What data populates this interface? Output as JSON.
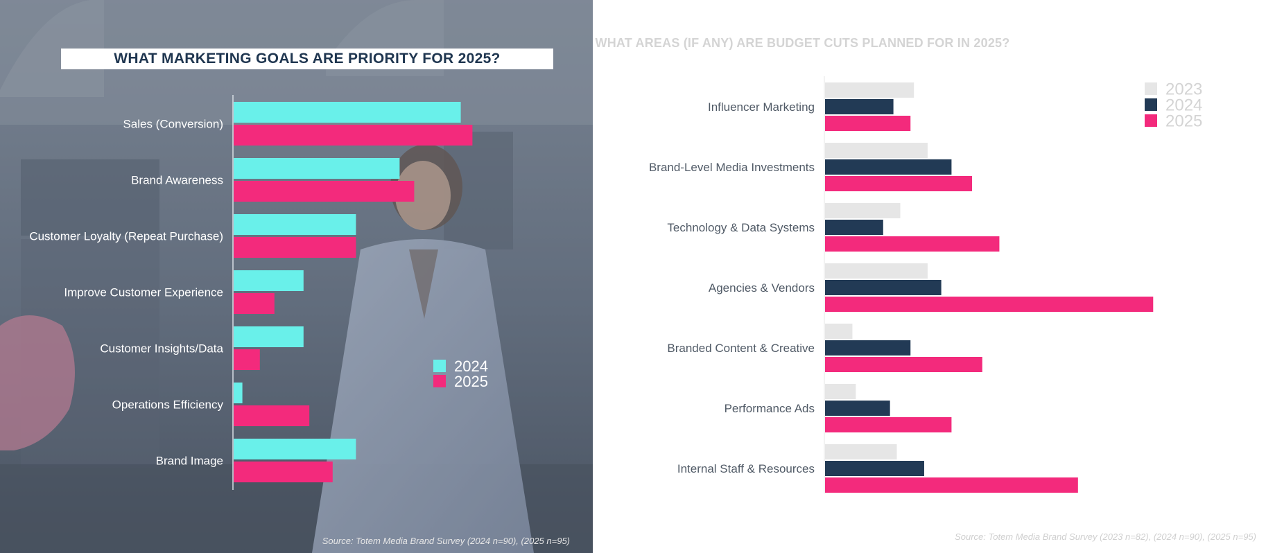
{
  "colors": {
    "cyan": "#69f0ea",
    "pink": "#f32a7c",
    "navy": "#223a55",
    "lightgray": "#e6e6e6",
    "left_label": "#ffffff",
    "right_label": "#505a66"
  },
  "left": {
    "source": "Source: Totem Media Brand Survey (2024 n=90), (2025 n=95)"
  },
  "right": {
    "source": "Source: Totem Media Brand Survey (2023 n=82), (2024 n=90), (2025 n=95)"
  },
  "chart_data": [
    {
      "type": "bar",
      "orientation": "horizontal",
      "title": "WHAT MARKETING GOALS ARE PRIORITY FOR 2025?",
      "categories": [
        "Sales (Conversion)",
        "Brand Awareness",
        "Customer Loyalty (Repeat Purchase)",
        "Improve Customer Experience",
        "Customer Insights/Data",
        "Operations Efficiency",
        "Brand Image"
      ],
      "series": [
        {
          "name": "2024",
          "color": "#69f0ea",
          "values": [
            78,
            57,
            42,
            24,
            24,
            3,
            42
          ]
        },
        {
          "name": "2025",
          "color": "#f32a7c",
          "values": [
            82,
            62,
            42,
            14,
            9,
            26,
            34
          ]
        }
      ],
      "xlim": [
        0,
        100
      ],
      "grid": false,
      "legend": "center-right"
    },
    {
      "type": "bar",
      "orientation": "horizontal",
      "title": "WHAT AREAS (IF ANY) ARE BUDGET CUTS PLANNED FOR IN 2025?",
      "categories": [
        "Influencer Marketing",
        "Brand-Level Media Investments",
        "Technology & Data Systems",
        "Agencies & Vendors",
        "Branded Content & Creative",
        "Performance Ads",
        "Internal Staff & Resources"
      ],
      "series": [
        {
          "name": "2023",
          "color": "#e6e6e6",
          "values": [
            26,
            30,
            22,
            30,
            8,
            9,
            21
          ]
        },
        {
          "name": "2024",
          "color": "#223a55",
          "values": [
            20,
            37,
            17,
            34,
            25,
            19,
            29
          ]
        },
        {
          "name": "2025",
          "color": "#f32a7c",
          "values": [
            25,
            43,
            51,
            96,
            46,
            37,
            74
          ]
        }
      ],
      "xlim": [
        0,
        100
      ],
      "grid": false,
      "legend": "top-right"
    }
  ]
}
